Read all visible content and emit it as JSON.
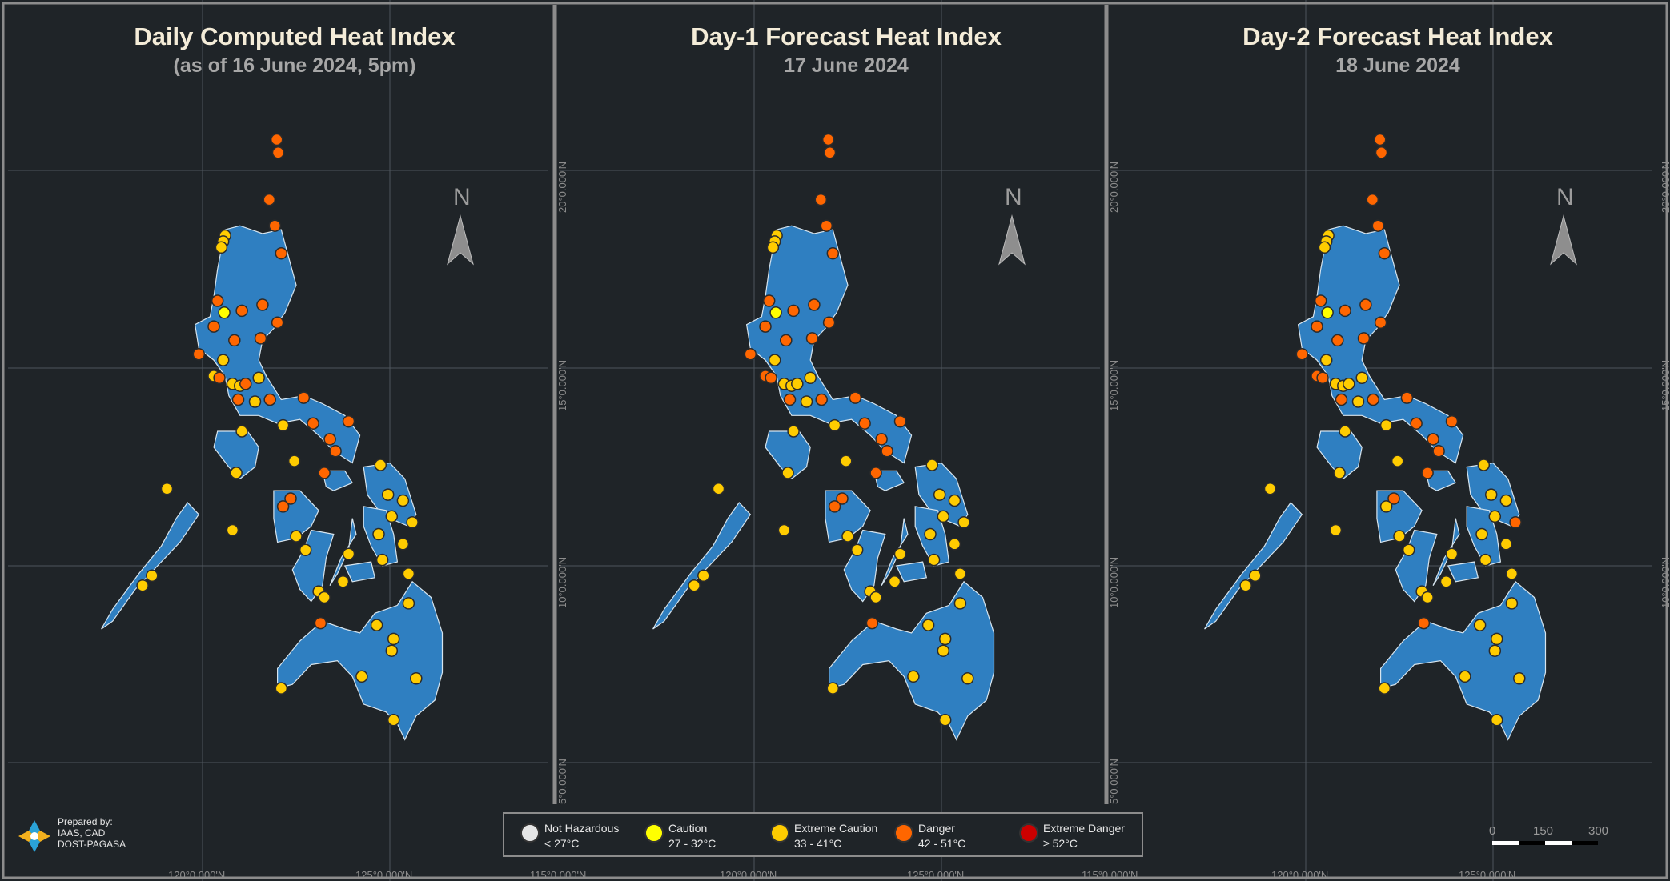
{
  "colors": {
    "background": "#1f2428",
    "land": "#2f7fc1",
    "land_outline": "#d6e4ee",
    "grid": "#4d555c",
    "frame": "#8c8c8c",
    "not_hazardous": "#e6e6e6",
    "caution": "#ffff00",
    "extreme_caution": "#ffcc00",
    "danger": "#ff6600",
    "extreme_danger": "#cc0000"
  },
  "panels": [
    {
      "title": "Daily Computed Heat Index",
      "subtitle": "(as of 16 June 2024, 5pm)"
    },
    {
      "title": "Day-1 Forecast Heat Index",
      "subtitle": "17 June 2024"
    },
    {
      "title": "Day-2 Forecast Heat Index",
      "subtitle": "18 June 2024"
    }
  ],
  "north_label": "N",
  "coords": {
    "lon_120": "120°0.000'N",
    "lon_125": "125°0.000'N",
    "lon_115": "115°0.000'N",
    "lat_20": "20°0.000'N",
    "lat_15": "15°0.000'N",
    "lat_10": "10°0.000'N",
    "lat_5": "5°0.000'N"
  },
  "legend": [
    {
      "label": "Not Hazardous",
      "range": "< 27°C",
      "color": "#e6e6e6"
    },
    {
      "label": "Caution",
      "range": "27 - 32°C",
      "color": "#ffff00"
    },
    {
      "label": "Extreme Caution",
      "range": "33 - 41°C",
      "color": "#ffcc00"
    },
    {
      "label": "Danger",
      "range": "42 - 51°C",
      "color": "#ff6600"
    },
    {
      "label": "Extreme Danger",
      "range": "≥ 52°C",
      "color": "#cc0000"
    }
  ],
  "prepared_by": {
    "line1": "Prepared by:",
    "line2": "IAAS, CAD",
    "line3": "DOST-PAGASA"
  },
  "scale_bar": {
    "labels": [
      "0",
      "150",
      "300"
    ]
  },
  "stations": [
    {
      "lon": 121.98,
      "lat": 20.78,
      "cat": [
        "D",
        "D",
        "D"
      ]
    },
    {
      "lon": 122.02,
      "lat": 20.45,
      "cat": [
        "D",
        "D",
        "D"
      ]
    },
    {
      "lon": 121.78,
      "lat": 19.26,
      "cat": [
        "D",
        "D",
        "D"
      ]
    },
    {
      "lon": 121.93,
      "lat": 18.6,
      "cat": [
        "D",
        "D",
        "D"
      ]
    },
    {
      "lon": 120.6,
      "lat": 18.35,
      "cat": [
        "E",
        "E",
        "E"
      ]
    },
    {
      "lon": 120.55,
      "lat": 18.2,
      "cat": [
        "E",
        "E",
        "E"
      ]
    },
    {
      "lon": 120.5,
      "lat": 18.05,
      "cat": [
        "E",
        "E",
        "E"
      ]
    },
    {
      "lon": 122.1,
      "lat": 17.9,
      "cat": [
        "D",
        "D",
        "D"
      ]
    },
    {
      "lon": 120.4,
      "lat": 16.7,
      "cat": [
        "D",
        "D",
        "D"
      ]
    },
    {
      "lon": 120.58,
      "lat": 16.4,
      "cat": [
        "C",
        "C",
        "C"
      ]
    },
    {
      "lon": 121.05,
      "lat": 16.45,
      "cat": [
        "D",
        "D",
        "D"
      ]
    },
    {
      "lon": 121.6,
      "lat": 16.6,
      "cat": [
        "D",
        "D",
        "D"
      ]
    },
    {
      "lon": 122.0,
      "lat": 16.15,
      "cat": [
        "D",
        "D",
        "D"
      ]
    },
    {
      "lon": 120.3,
      "lat": 16.05,
      "cat": [
        "D",
        "D",
        "D"
      ]
    },
    {
      "lon": 120.85,
      "lat": 15.7,
      "cat": [
        "D",
        "D",
        "D"
      ]
    },
    {
      "lon": 121.55,
      "lat": 15.75,
      "cat": [
        "D",
        "D",
        "D"
      ]
    },
    {
      "lon": 119.9,
      "lat": 15.35,
      "cat": [
        "D",
        "D",
        "D"
      ]
    },
    {
      "lon": 120.55,
      "lat": 15.2,
      "cat": [
        "E",
        "E",
        "E"
      ]
    },
    {
      "lon": 120.3,
      "lat": 14.8,
      "cat": [
        "E",
        "D",
        "D"
      ]
    },
    {
      "lon": 120.45,
      "lat": 14.75,
      "cat": [
        "D",
        "D",
        "D"
      ]
    },
    {
      "lon": 120.8,
      "lat": 14.6,
      "cat": [
        "E",
        "E",
        "E"
      ]
    },
    {
      "lon": 121.0,
      "lat": 14.55,
      "cat": [
        "E",
        "E",
        "E"
      ]
    },
    {
      "lon": 121.15,
      "lat": 14.6,
      "cat": [
        "D",
        "E",
        "E"
      ]
    },
    {
      "lon": 121.5,
      "lat": 14.75,
      "cat": [
        "E",
        "E",
        "E"
      ]
    },
    {
      "lon": 120.95,
      "lat": 14.2,
      "cat": [
        "D",
        "D",
        "D"
      ]
    },
    {
      "lon": 121.4,
      "lat": 14.15,
      "cat": [
        "E",
        "E",
        "E"
      ]
    },
    {
      "lon": 121.8,
      "lat": 14.2,
      "cat": [
        "D",
        "D",
        "D"
      ]
    },
    {
      "lon": 122.7,
      "lat": 14.25,
      "cat": [
        "D",
        "D",
        "D"
      ]
    },
    {
      "lon": 121.05,
      "lat": 13.4,
      "cat": [
        "E",
        "E",
        "E"
      ]
    },
    {
      "lon": 122.15,
      "lat": 13.55,
      "cat": [
        "E",
        "E",
        "E"
      ]
    },
    {
      "lon": 122.95,
      "lat": 13.6,
      "cat": [
        "D",
        "D",
        "D"
      ]
    },
    {
      "lon": 123.4,
      "lat": 13.2,
      "cat": [
        "D",
        "D",
        "D"
      ]
    },
    {
      "lon": 123.55,
      "lat": 12.9,
      "cat": [
        "D",
        "D",
        "D"
      ]
    },
    {
      "lon": 123.9,
      "lat": 13.65,
      "cat": [
        "D",
        "D",
        "D"
      ]
    },
    {
      "lon": 122.45,
      "lat": 12.65,
      "cat": [
        "E",
        "E",
        "E"
      ]
    },
    {
      "lon": 123.25,
      "lat": 12.35,
      "cat": [
        "D",
        "D",
        "D"
      ]
    },
    {
      "lon": 124.75,
      "lat": 12.55,
      "cat": [
        "E",
        "E",
        "E"
      ]
    },
    {
      "lon": 120.9,
      "lat": 12.35,
      "cat": [
        "E",
        "E",
        "E"
      ]
    },
    {
      "lon": 119.05,
      "lat": 11.95,
      "cat": [
        "E",
        "E",
        "E"
      ]
    },
    {
      "lon": 124.95,
      "lat": 11.8,
      "cat": [
        "E",
        "E",
        "E"
      ]
    },
    {
      "lon": 125.35,
      "lat": 11.65,
      "cat": [
        "E",
        "E",
        "E"
      ]
    },
    {
      "lon": 122.35,
      "lat": 11.7,
      "cat": [
        "D",
        "D",
        "D"
      ]
    },
    {
      "lon": 122.15,
      "lat": 11.5,
      "cat": [
        "D",
        "D",
        "E"
      ]
    },
    {
      "lon": 125.05,
      "lat": 11.25,
      "cat": [
        "E",
        "E",
        "E"
      ]
    },
    {
      "lon": 125.6,
      "lat": 11.1,
      "cat": [
        "E",
        "E",
        "D"
      ]
    },
    {
      "lon": 120.8,
      "lat": 10.9,
      "cat": [
        "E",
        "E",
        "E"
      ]
    },
    {
      "lon": 122.5,
      "lat": 10.75,
      "cat": [
        "E",
        "E",
        "E"
      ]
    },
    {
      "lon": 124.7,
      "lat": 10.8,
      "cat": [
        "E",
        "E",
        "E"
      ]
    },
    {
      "lon": 125.35,
      "lat": 10.55,
      "cat": [
        "E",
        "E",
        "E"
      ]
    },
    {
      "lon": 122.75,
      "lat": 10.4,
      "cat": [
        "E",
        "E",
        "E"
      ]
    },
    {
      "lon": 123.9,
      "lat": 10.3,
      "cat": [
        "E",
        "E",
        "E"
      ]
    },
    {
      "lon": 124.8,
      "lat": 10.15,
      "cat": [
        "E",
        "E",
        "E"
      ]
    },
    {
      "lon": 118.65,
      "lat": 9.75,
      "cat": [
        "E",
        "E",
        "E"
      ]
    },
    {
      "lon": 125.5,
      "lat": 9.8,
      "cat": [
        "E",
        "E",
        "E"
      ]
    },
    {
      "lon": 118.4,
      "lat": 9.5,
      "cat": [
        "E",
        "E",
        "E"
      ]
    },
    {
      "lon": 123.75,
      "lat": 9.6,
      "cat": [
        "E",
        "E",
        "E"
      ]
    },
    {
      "lon": 123.1,
      "lat": 9.35,
      "cat": [
        "E",
        "E",
        "E"
      ]
    },
    {
      "lon": 123.25,
      "lat": 9.2,
      "cat": [
        "E",
        "E",
        "E"
      ]
    },
    {
      "lon": 125.5,
      "lat": 9.05,
      "cat": [
        "E",
        "E",
        "E"
      ]
    },
    {
      "lon": 123.15,
      "lat": 8.55,
      "cat": [
        "D",
        "D",
        "D"
      ]
    },
    {
      "lon": 124.65,
      "lat": 8.5,
      "cat": [
        "E",
        "E",
        "E"
      ]
    },
    {
      "lon": 125.1,
      "lat": 8.15,
      "cat": [
        "E",
        "E",
        "E"
      ]
    },
    {
      "lon": 125.05,
      "lat": 7.85,
      "cat": [
        "E",
        "E",
        "E"
      ]
    },
    {
      "lon": 124.25,
      "lat": 7.2,
      "cat": [
        "E",
        "E",
        "E"
      ]
    },
    {
      "lon": 125.7,
      "lat": 7.15,
      "cat": [
        "E",
        "E",
        "E"
      ]
    },
    {
      "lon": 122.1,
      "lat": 6.9,
      "cat": [
        "E",
        "E",
        "E"
      ]
    },
    {
      "lon": 125.1,
      "lat": 6.1,
      "cat": [
        "E",
        "E",
        "E"
      ]
    }
  ]
}
